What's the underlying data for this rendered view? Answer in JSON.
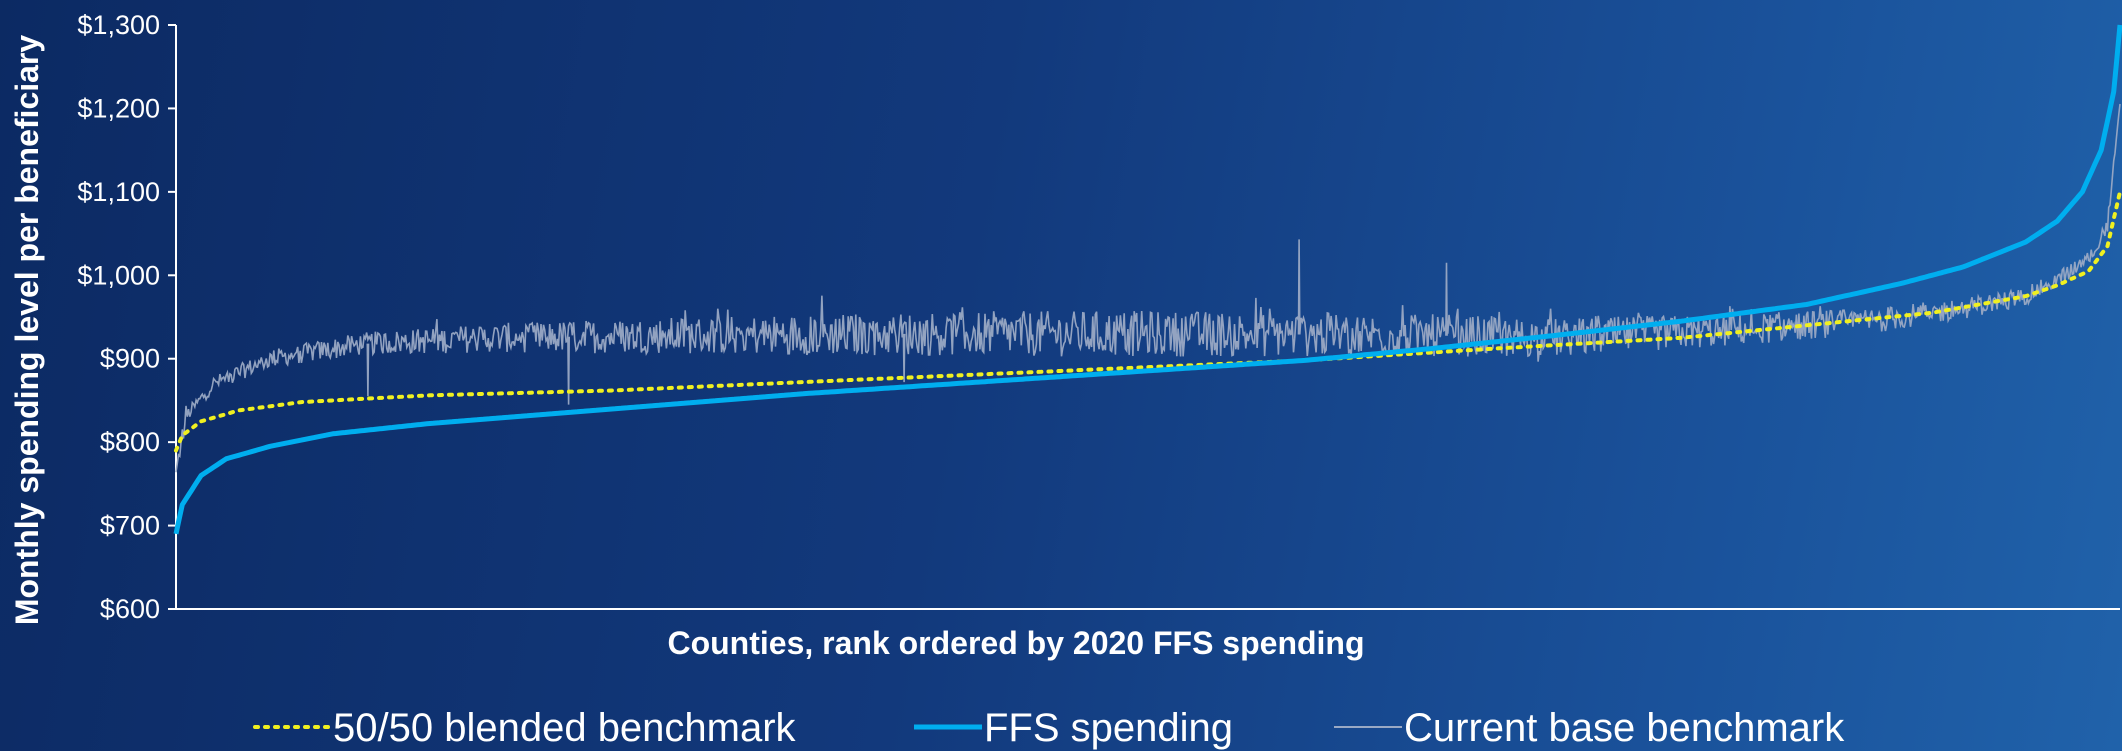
{
  "chart_data": {
    "type": "line",
    "title": "",
    "xlabel": "Counties, rank ordered by 2020 FFS spending",
    "ylabel": "Monthly spending level per beneficiary",
    "ylim": [
      600,
      1300
    ],
    "yticks": [
      600,
      700,
      800,
      900,
      1000,
      1100,
      1200,
      1300
    ],
    "ytick_labels": [
      "$600",
      "$700",
      "$800",
      "$900",
      "$1,000",
      "$1,100",
      "$1,200",
      "$1,300"
    ],
    "x_count": 3100,
    "grid": false,
    "legend": "bottom",
    "series": [
      {
        "name": "50/50 blended benchmark",
        "style": "dotted",
        "color": "#f0f020",
        "x": [
          0,
          10,
          40,
          100,
          200,
          400,
          700,
          1000,
          1400,
          1800,
          2100,
          2400,
          2600,
          2800,
          2950,
          3000,
          3050,
          3080,
          3100
        ],
        "values": [
          790,
          808,
          825,
          838,
          848,
          856,
          862,
          872,
          885,
          898,
          912,
          925,
          940,
          955,
          975,
          988,
          1005,
          1035,
          1100
        ]
      },
      {
        "name": "FFS spending",
        "style": "solid",
        "color": "#00aeef",
        "x": [
          0,
          10,
          40,
          80,
          150,
          250,
          400,
          700,
          1000,
          1400,
          1800,
          2000,
          2200,
          2400,
          2600,
          2750,
          2850,
          2950,
          3000,
          3040,
          3070,
          3090,
          3100
        ],
        "values": [
          690,
          725,
          760,
          780,
          795,
          810,
          822,
          840,
          858,
          878,
          898,
          912,
          928,
          945,
          965,
          990,
          1010,
          1040,
          1065,
          1100,
          1150,
          1220,
          1300
        ]
      },
      {
        "name": "Current base benchmark",
        "style": "solid-noisy",
        "color": "#9aa9c4",
        "x": [
          0,
          15,
          60,
          150,
          300,
          500,
          800,
          1200,
          1600,
          2000,
          2200,
          2500,
          2700,
          2850,
          2950,
          3000,
          3050,
          3080,
          3100
        ],
        "values": [
          760,
          830,
          870,
          900,
          918,
          925,
          928,
          930,
          930,
          928,
          925,
          935,
          945,
          960,
          975,
          995,
          1020,
          1060,
          1200
        ],
        "noise": 22,
        "spikes": [
          {
            "x": 1790,
            "value": 1043
          },
          {
            "x": 2025,
            "value": 1015
          },
          {
            "x": 625,
            "value": 845
          },
          {
            "x": 305,
            "value": 855
          },
          {
            "x": 1160,
            "value": 872
          }
        ]
      }
    ]
  }
}
